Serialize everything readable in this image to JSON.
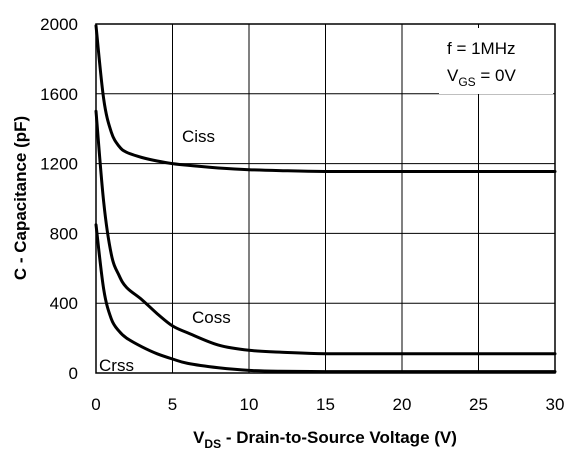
{
  "chart_data": {
    "type": "line",
    "title": "",
    "xlabel_main": "V",
    "xlabel_sub": "DS",
    "xlabel_rest": " - Drain-to-Source Voltage (V)",
    "ylabel": "C - Capacitance (pF)",
    "xlim": [
      0,
      30
    ],
    "ylim": [
      0,
      2000
    ],
    "x_ticks": [
      "0",
      "5",
      "10",
      "15",
      "20",
      "25",
      "30"
    ],
    "y_ticks": [
      "0",
      "400",
      "800",
      "1200",
      "1600",
      "2000"
    ],
    "grid": true,
    "conditions": {
      "line1": "f = 1MHz",
      "line2_main": "V",
      "line2_sub": "GS",
      "line2_rest": " = 0V"
    },
    "series": [
      {
        "name": "Ciss",
        "x": [
          0,
          0.5,
          1,
          1.5,
          2,
          3,
          4,
          5,
          6,
          8,
          10,
          12,
          15,
          20,
          25,
          30
        ],
        "y": [
          1990,
          1570,
          1380,
          1300,
          1265,
          1235,
          1215,
          1200,
          1190,
          1175,
          1165,
          1160,
          1155,
          1155,
          1155,
          1155
        ]
      },
      {
        "name": "Coss",
        "x": [
          0,
          0.5,
          1,
          1.5,
          2,
          3,
          4,
          5,
          6,
          8,
          10,
          12,
          15,
          20,
          25,
          30
        ],
        "y": [
          1500,
          980,
          680,
          560,
          490,
          420,
          340,
          270,
          230,
          160,
          130,
          120,
          110,
          110,
          110,
          110
        ]
      },
      {
        "name": "Crss",
        "x": [
          0,
          0.5,
          1,
          1.5,
          2,
          3,
          4,
          5,
          6,
          8,
          10,
          12,
          15,
          20,
          25,
          30
        ],
        "y": [
          850,
          480,
          310,
          240,
          200,
          150,
          110,
          80,
          55,
          30,
          15,
          10,
          8,
          8,
          8,
          8
        ]
      }
    ],
    "series_labels": {
      "Ciss": "Ciss",
      "Coss": "Coss",
      "Crss": "Crss"
    }
  }
}
